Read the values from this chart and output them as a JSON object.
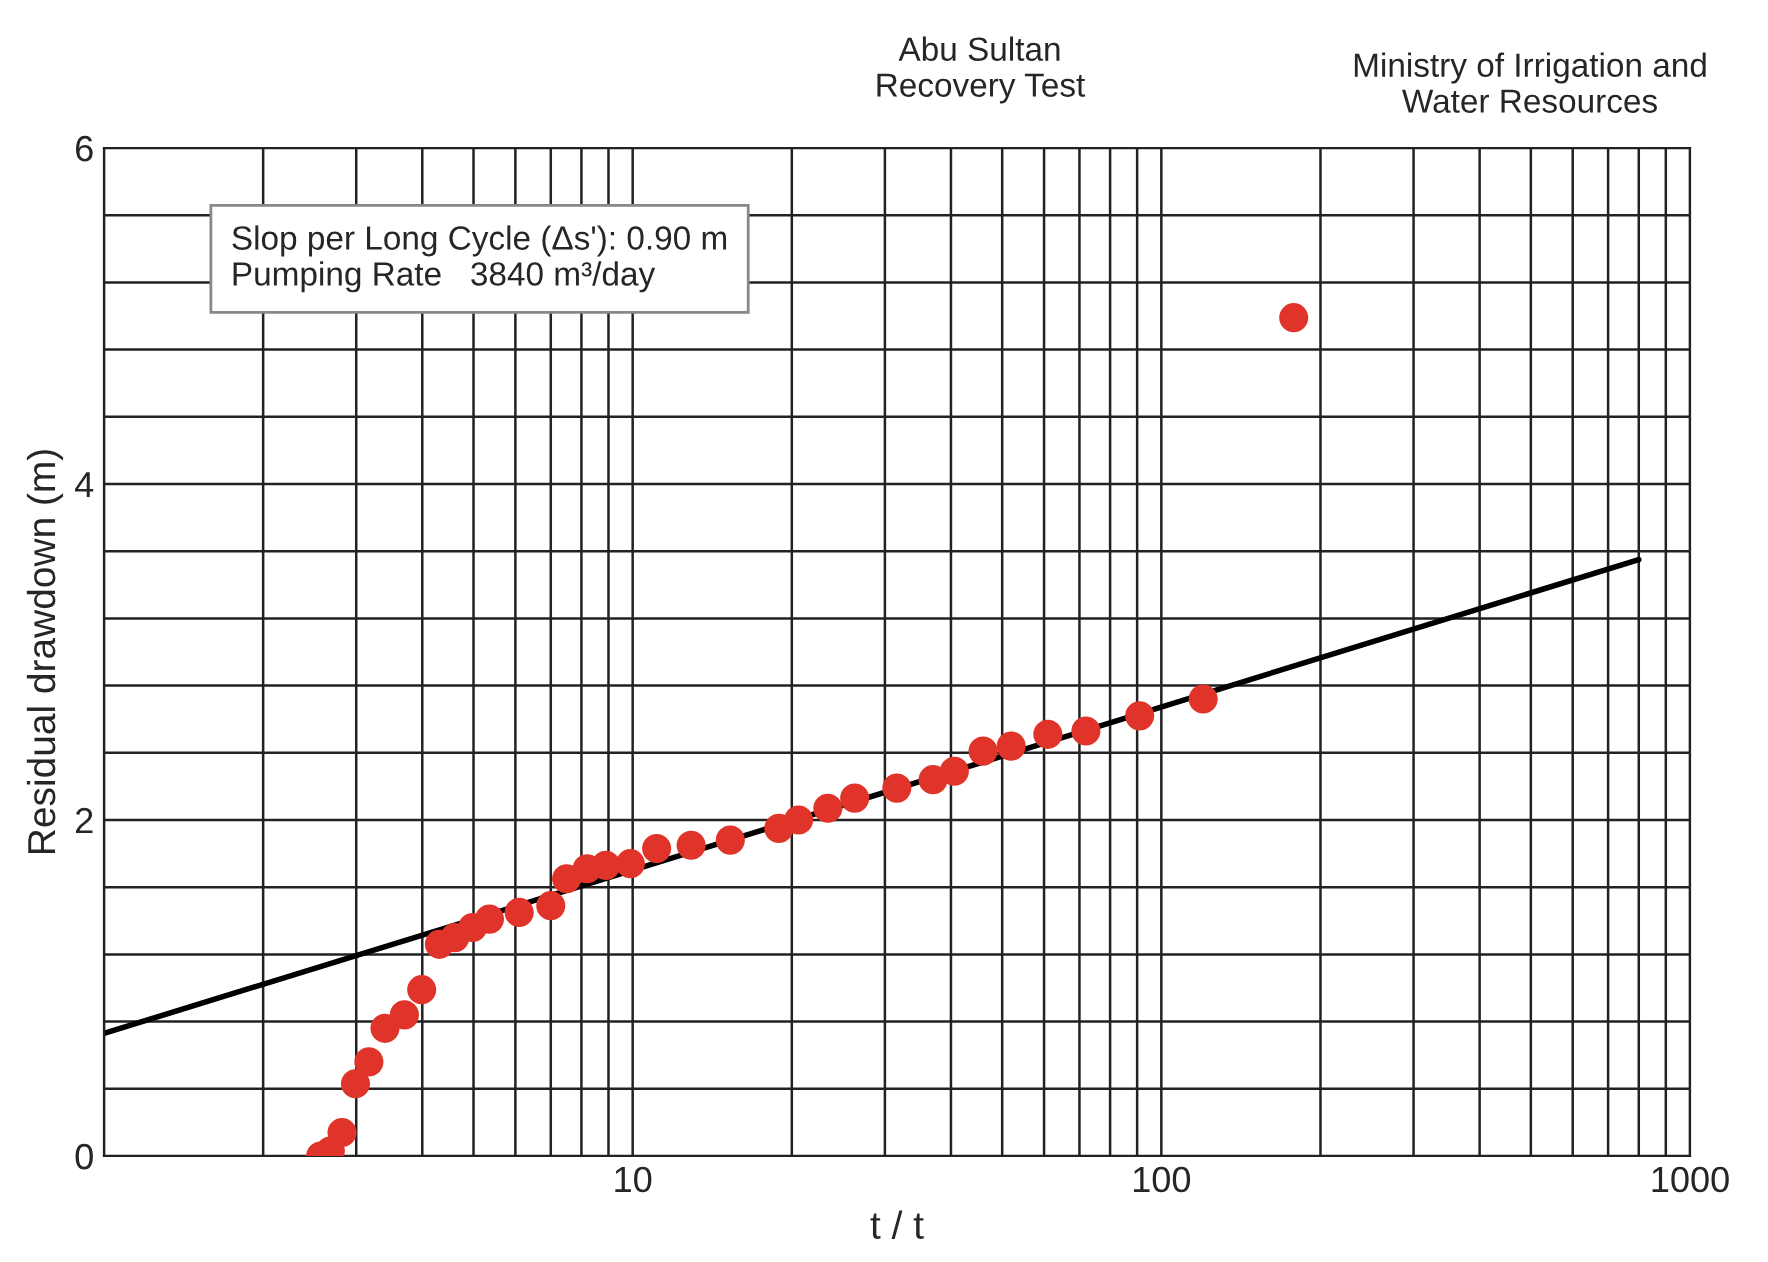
{
  "chart_data": {
    "type": "scatter",
    "title": "Abu Sultan\nRecovery Test",
    "xlabel": "t / t",
    "ylabel": "Residual drawdown (m)",
    "annotations": [
      "Ministry of Irrigation and\nWater Resources",
      "Slop per Long Cycle (Δs'): 0.90 m\nPumping Rate   3840 m³/day"
    ],
    "log": "x",
    "xlim": [
      1,
      1000
    ],
    "ylim": [
      0,
      6
    ],
    "xticks": [
      {
        "value": 1,
        "label": null
      },
      {
        "value": 2,
        "label": null
      },
      {
        "value": 3,
        "label": null
      },
      {
        "value": 4,
        "label": null
      },
      {
        "value": 5,
        "label": null
      },
      {
        "value": 6,
        "label": null
      },
      {
        "value": 7,
        "label": null
      },
      {
        "value": 8,
        "label": null
      },
      {
        "value": 9,
        "label": null
      },
      10,
      {
        "value": 20,
        "label": null
      },
      {
        "value": 30,
        "label": null
      },
      {
        "value": 40,
        "label": null
      },
      {
        "value": 50,
        "label": null
      },
      {
        "value": 60,
        "label": null
      },
      {
        "value": 70,
        "label": null
      },
      {
        "value": 80,
        "label": null
      },
      {
        "value": 90,
        "label": null
      },
      100,
      {
        "value": 200,
        "label": null
      },
      {
        "value": 300,
        "label": null
      },
      {
        "value": 400,
        "label": null
      },
      {
        "value": 500,
        "label": null
      },
      {
        "value": 600,
        "label": null
      },
      {
        "value": 700,
        "label": null
      },
      {
        "value": 800,
        "label": null
      },
      {
        "value": 900,
        "label": null
      },
      1000
    ],
    "yticks": [
      0,
      {
        "value": 0.4,
        "label": null
      },
      {
        "value": 0.8,
        "label": null
      },
      {
        "value": 1.2,
        "label": null
      },
      {
        "value": 1.6,
        "label": null
      },
      2,
      {
        "value": 2.4,
        "label": null
      },
      {
        "value": 2.8,
        "label": null
      },
      {
        "value": 3.2,
        "label": null
      },
      {
        "value": 3.6,
        "label": null
      },
      4,
      {
        "value": 4.4,
        "label": null
      },
      {
        "value": 4.8,
        "label": null
      },
      {
        "value": 5.2,
        "label": null
      },
      {
        "value": 5.6,
        "label": null
      },
      6
    ],
    "grid": true,
    "marker": "circle",
    "series": [
      {
        "color": "#e0342a",
        "x": [
          2.57,
          2.68,
          2.82,
          2.99,
          3.17,
          3.4,
          3.7,
          3.99,
          4.31,
          4.61,
          4.98,
          5.36,
          6.1,
          7.0,
          7.5,
          8.2,
          8.9,
          9.9,
          11.1,
          12.9,
          15.3,
          18.9,
          20.6,
          23.4,
          26.3,
          31.6,
          37,
          40.6,
          46,
          52,
          61,
          72,
          91,
          120,
          178
        ],
        "values": [
          0,
          0.03,
          0.14,
          0.43,
          0.56,
          0.76,
          0.84,
          0.99,
          1.26,
          1.3,
          1.36,
          1.41,
          1.45,
          1.49,
          1.65,
          1.71,
          1.73,
          1.74,
          1.83,
          1.85,
          1.88,
          1.95,
          2.0,
          2.07,
          2.13,
          2.19,
          2.24,
          2.29,
          2.41,
          2.44,
          2.51,
          2.53,
          2.62,
          2.72,
          4.99
        ]
      },
      {
        "type": "line",
        "color": "#000000",
        "marker": "none",
        "line_style": "solid",
        "x": [
          1,
          800
        ],
        "values": [
          0.73,
          3.55
        ]
      }
    ]
  }
}
